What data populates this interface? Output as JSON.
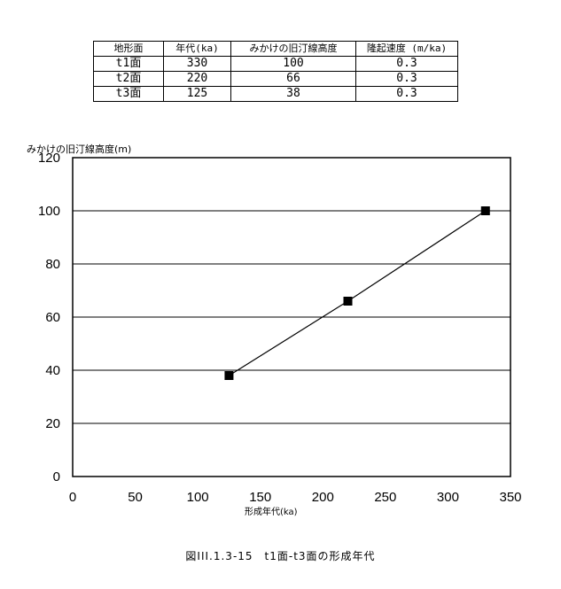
{
  "table": {
    "headers": [
      "地形面",
      "年代(ka)",
      "みかけの旧汀線高度",
      "隆起速度 (m/ka)"
    ],
    "rows": [
      [
        "t1面",
        "330",
        "100",
        "0.3"
      ],
      [
        "t2面",
        "220",
        "66",
        "0.3"
      ],
      [
        "t3面",
        "125",
        "38",
        "0.3"
      ]
    ]
  },
  "chart_data": {
    "type": "line",
    "ylabel": "みかけの旧汀線高度(m)",
    "xlabel": "形成年代(ka)",
    "xlim": [
      0,
      350
    ],
    "ylim": [
      0,
      120
    ],
    "xticks": [
      0,
      50,
      100,
      150,
      200,
      250,
      300,
      350
    ],
    "yticks": [
      0,
      20,
      40,
      60,
      80,
      100,
      120
    ],
    "horizontal_grid": true,
    "marker": "square",
    "line_color": "#000000",
    "series": [
      {
        "x": [
          125,
          220,
          330
        ],
        "y": [
          38,
          66,
          100
        ]
      }
    ]
  },
  "caption": "図III.1.3-15　t1面-t3面の形成年代"
}
